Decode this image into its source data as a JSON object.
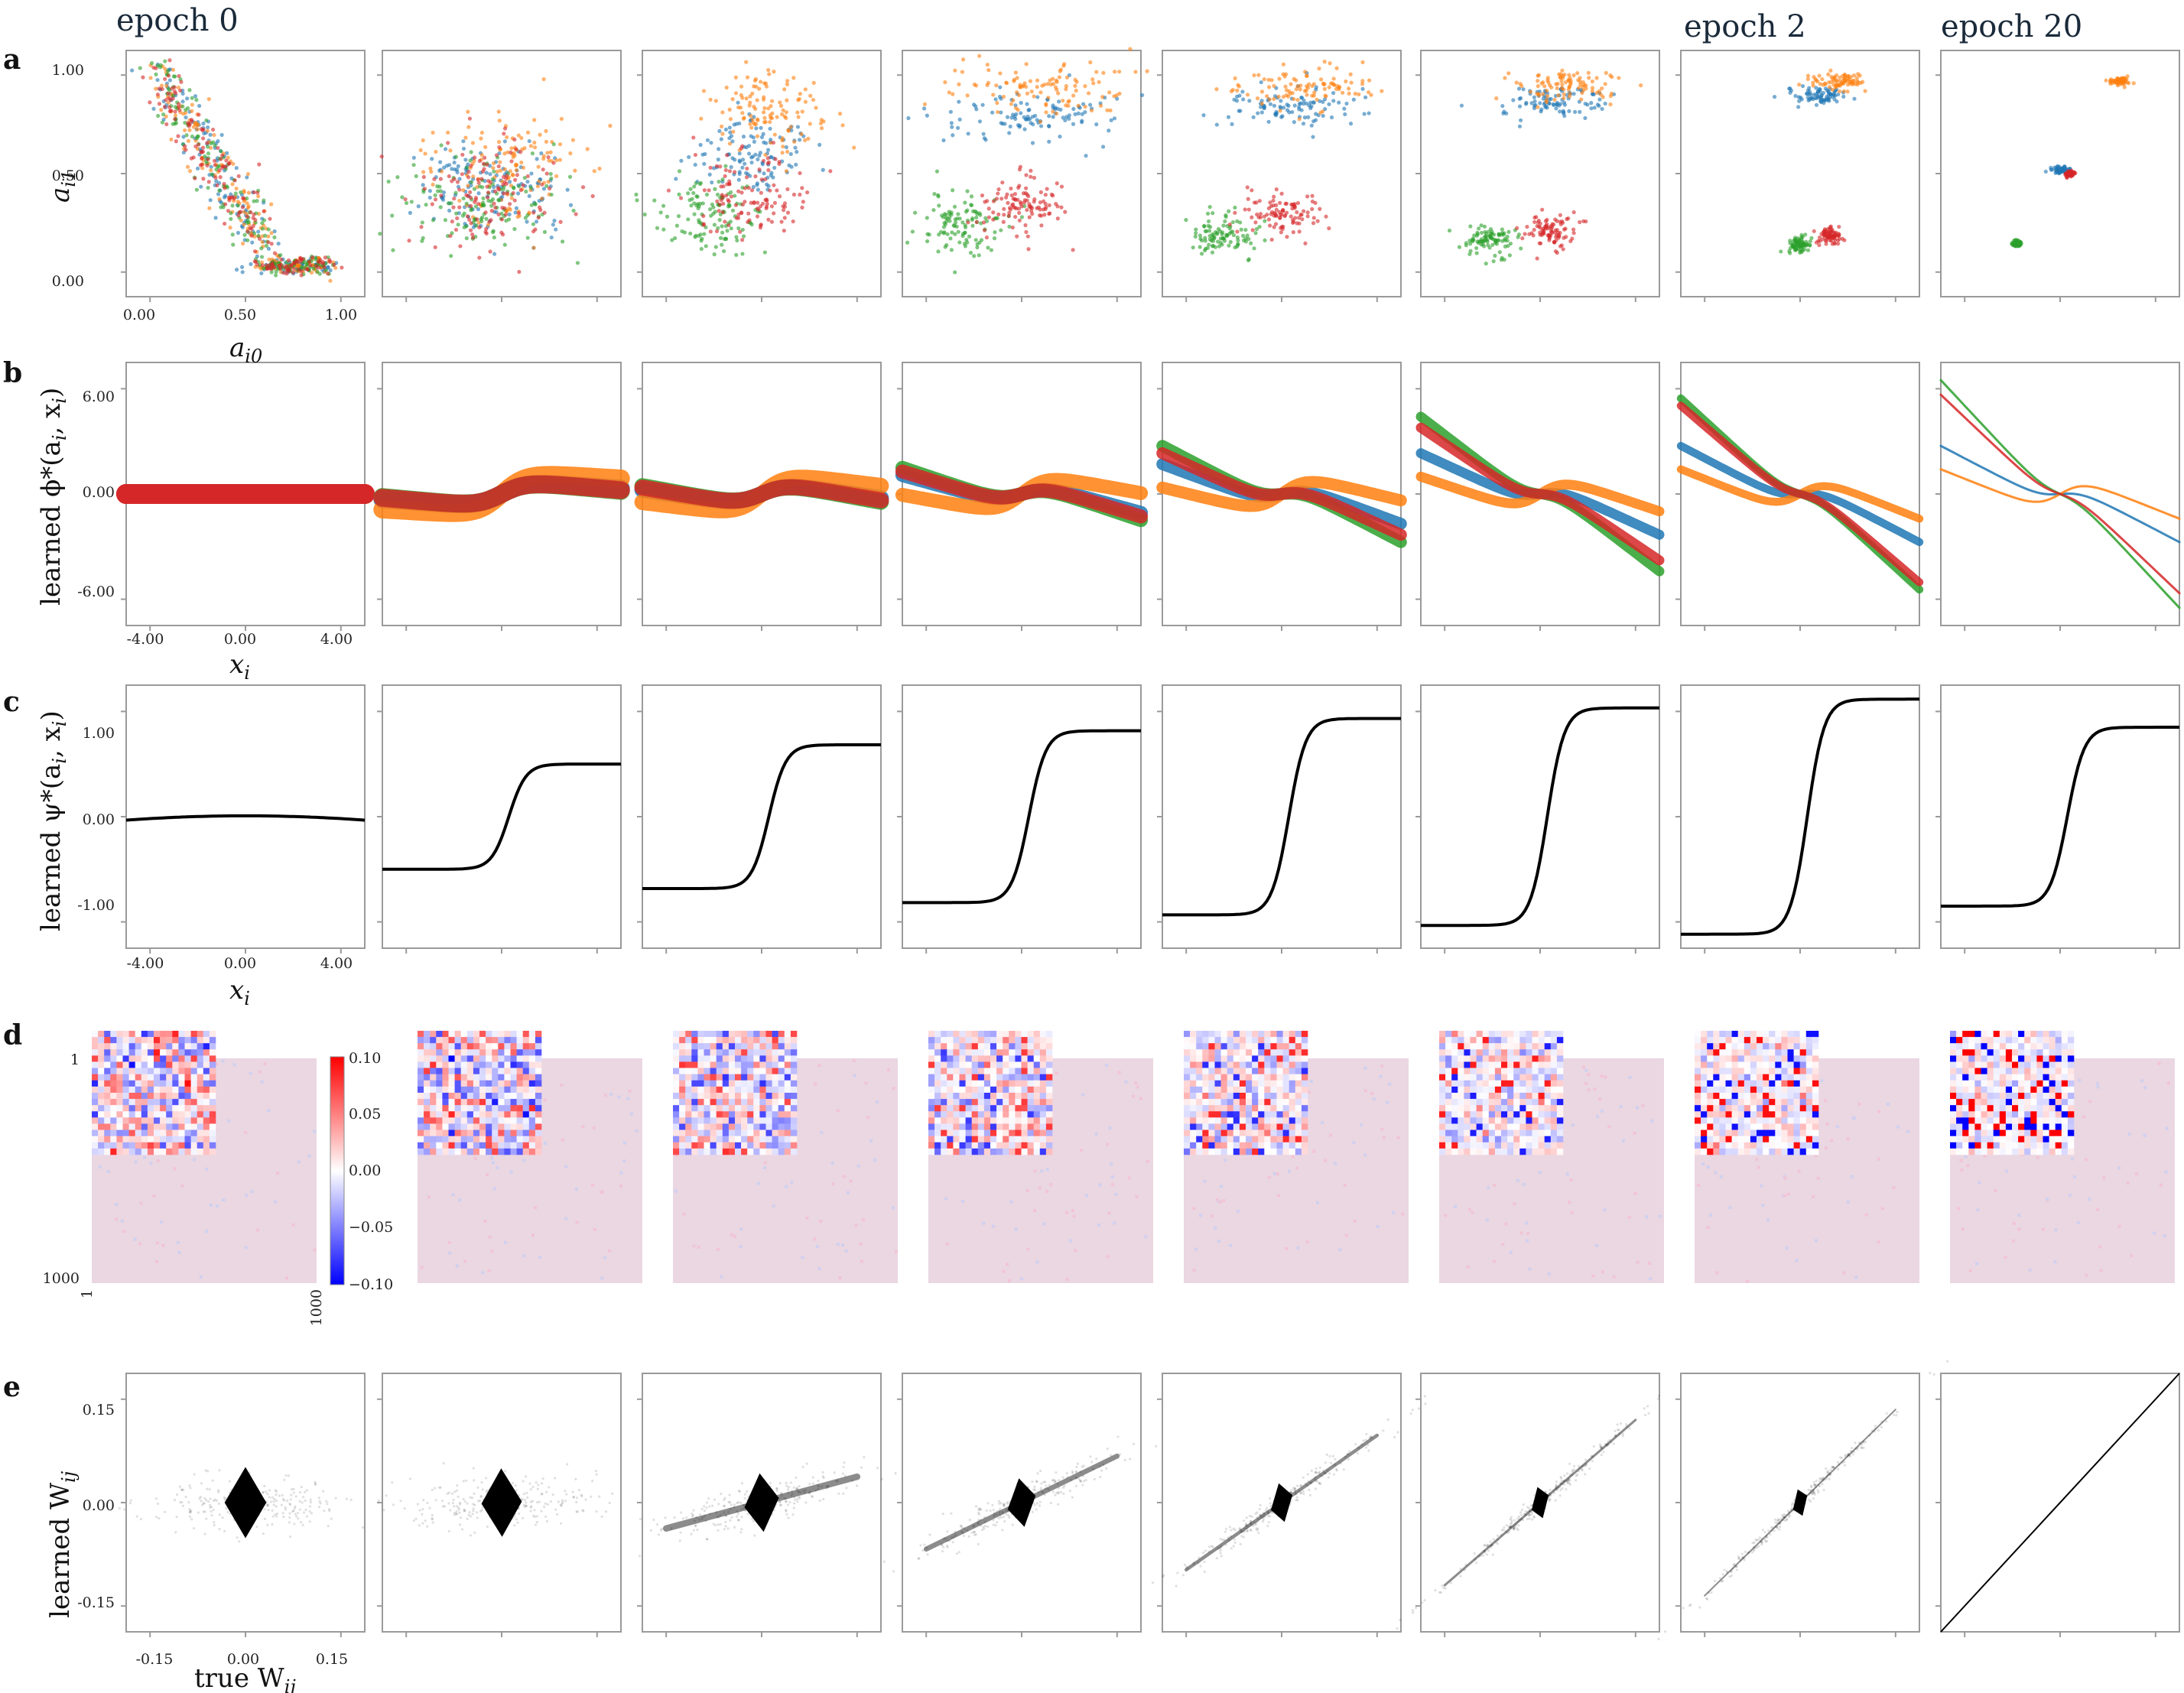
{
  "epoch_labels": {
    "first": "epoch 0",
    "middle": "epoch 2",
    "last": "epoch 20"
  },
  "panel_labels": [
    "a",
    "b",
    "c",
    "d",
    "e"
  ],
  "colors": {
    "blue": "#1f77b4",
    "orange": "#ff7f0e",
    "green": "#2ca02c",
    "red": "#d62728",
    "pink": "#f2b8c4"
  },
  "panel_a": {
    "xlabel": "a",
    "xlabel_sub": "i0",
    "ylabel": "a",
    "ylabel_sub": "i1",
    "xticks": [
      "0.00",
      "0.50",
      "1.00"
    ],
    "yticks": [
      "1.00",
      "0.50",
      "0.00"
    ]
  },
  "panel_b": {
    "ylabel": "learned ϕ*(a",
    "ylabel_mid": "i",
    "ylabel_end": ", x",
    "ylabel_sub": "i",
    "ylabel_close": ")",
    "xlabel": "x",
    "xlabel_sub": "i",
    "xticks": [
      "-4.00",
      "0.00",
      "4.00"
    ],
    "yticks": [
      "6.00",
      "0.00",
      "-6.00"
    ]
  },
  "panel_c": {
    "ylabel": "learned ψ*(a",
    "ylabel_mid": "i",
    "ylabel_end": ", x",
    "ylabel_sub": "i",
    "ylabel_close": ")",
    "xlabel": "x",
    "xlabel_sub": "i",
    "xticks": [
      "-4.00",
      "0.00",
      "4.00"
    ],
    "yticks": [
      "1.00",
      "0.00",
      "-1.00"
    ]
  },
  "panel_d": {
    "yticks": [
      "1",
      "1000"
    ],
    "xticks": [
      "1",
      "1000"
    ],
    "colorbar_ticks": [
      "0.10",
      "0.05",
      "0.00",
      "−0.05",
      "−0.10"
    ]
  },
  "panel_e": {
    "ylabel": "learned W",
    "ylabel_sub": "ij",
    "xlabel": "true W",
    "xlabel_sub": "ij",
    "xticks": [
      "-0.15",
      "0.00",
      "0.15"
    ],
    "yticks": [
      "0.15",
      "0.00",
      "-0.15"
    ]
  },
  "chart_data": [
    {
      "type": "scatter",
      "panel": "a",
      "x_range": [
        -0.1,
        1.1
      ],
      "y_range": [
        -0.1,
        1.1
      ],
      "series_colors": [
        "#1f77b4",
        "#ff7f0e",
        "#2ca02c",
        "#d62728"
      ],
      "cluster_centers_by_epoch": [
        [
          [
            0.35,
            0.45
          ],
          [
            0.35,
            0.45
          ],
          [
            0.35,
            0.45
          ],
          [
            0.35,
            0.45
          ]
        ],
        [
          [
            0.45,
            0.45
          ],
          [
            0.55,
            0.55
          ],
          [
            0.4,
            0.35
          ],
          [
            0.45,
            0.4
          ]
        ],
        [
          [
            0.45,
            0.6
          ],
          [
            0.55,
            0.8
          ],
          [
            0.25,
            0.3
          ],
          [
            0.45,
            0.4
          ]
        ],
        [
          [
            0.55,
            0.78
          ],
          [
            0.62,
            0.92
          ],
          [
            0.2,
            0.25
          ],
          [
            0.5,
            0.35
          ]
        ],
        [
          [
            0.55,
            0.82
          ],
          [
            0.62,
            0.92
          ],
          [
            0.2,
            0.2
          ],
          [
            0.5,
            0.3
          ]
        ],
        [
          [
            0.55,
            0.85
          ],
          [
            0.62,
            0.93
          ],
          [
            0.25,
            0.18
          ],
          [
            0.55,
            0.22
          ]
        ],
        [
          [
            0.6,
            0.88
          ],
          [
            0.7,
            0.95
          ],
          [
            0.5,
            0.15
          ],
          [
            0.65,
            0.2
          ]
        ],
        [
          [
            0.5,
            0.52
          ],
          [
            0.8,
            0.95
          ],
          [
            0.28,
            0.16
          ],
          [
            0.55,
            0.5
          ]
        ]
      ]
    },
    {
      "type": "line",
      "panel": "b",
      "x_range": [
        -5,
        5
      ],
      "y_range": [
        -9,
        9
      ],
      "series": [
        {
          "color": "#1f77b4",
          "slope_by_epoch": [
            0,
            0.12,
            0.25,
            0.45,
            0.6,
            0.75,
            0.85,
            0.85
          ]
        },
        {
          "color": "#ff7f0e",
          "slope_by_epoch": [
            0,
            0.1,
            0.2,
            0.3,
            0.4,
            0.55,
            0.65,
            0.65
          ]
        },
        {
          "color": "#2ca02c",
          "slope_by_epoch": [
            0,
            0.15,
            0.3,
            0.55,
            0.85,
            1.25,
            1.5,
            1.75
          ]
        },
        {
          "color": "#d62728",
          "slope_by_epoch": [
            0,
            0.14,
            0.28,
            0.5,
            0.75,
            1.1,
            1.4,
            1.55
          ]
        }
      ]
    },
    {
      "type": "line",
      "panel": "c",
      "x_range": [
        -5,
        5
      ],
      "y_range": [
        -1.5,
        1.5
      ],
      "amplitude_by_epoch": [
        0.02,
        0.6,
        0.82,
        0.98,
        1.12,
        1.24,
        1.34,
        1.02
      ]
    },
    {
      "type": "heatmap",
      "panel": "d",
      "matrix_size": 1000,
      "inset_size": 20,
      "value_range": [
        -0.1,
        0.1
      ]
    },
    {
      "type": "scatter",
      "panel": "e",
      "x_range": [
        -0.2,
        0.2
      ],
      "y_range": [
        -0.2,
        0.2
      ],
      "fit_slope_by_epoch": [
        0,
        0.05,
        0.25,
        0.45,
        0.65,
        0.8,
        0.9,
        1.0
      ]
    }
  ]
}
